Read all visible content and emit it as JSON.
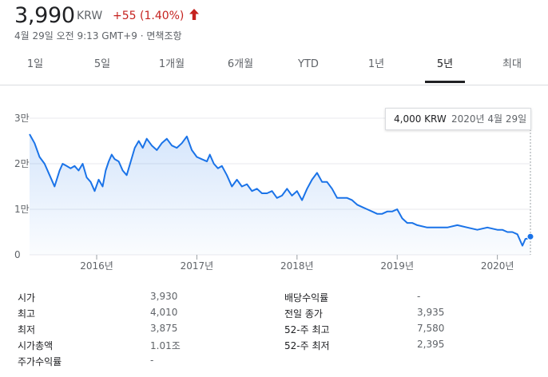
{
  "header": {
    "price": "3,990",
    "currency": "KRW",
    "change": "+55 (1.40%)",
    "change_color": "#c5221f",
    "trend_icon": "up-arrow-icon",
    "meta": "4월 29일 오전 9:13 GMT+9 · 면책조항"
  },
  "tabs": [
    {
      "label": "1일"
    },
    {
      "label": "5일"
    },
    {
      "label": "1개월"
    },
    {
      "label": "6개월"
    },
    {
      "label": "YTD"
    },
    {
      "label": "1년"
    },
    {
      "label": "5년",
      "active": true
    },
    {
      "label": "최대"
    }
  ],
  "tooltip": {
    "value": "4,000 KRW",
    "date": "2020년 4월 29일"
  },
  "chart_data": {
    "type": "area",
    "line_color": "#1a73e8",
    "y_ticks": [
      "3만",
      "2만",
      "1만",
      "0"
    ],
    "y_tick_values": [
      30000,
      20000,
      10000,
      0
    ],
    "ylim": [
      0,
      30000
    ],
    "x_ticks": [
      "2016년",
      "2017년",
      "2018년",
      "2019년",
      "2020년"
    ],
    "x_tick_values": [
      2016.0,
      2017.0,
      2018.0,
      2019.0,
      2020.0
    ],
    "xlim": [
      2015.33,
      2020.33
    ],
    "grid": true,
    "series": [
      {
        "x": [
          2015.33,
          2015.38,
          2015.43,
          2015.48,
          2015.53,
          2015.58,
          2015.63,
          2015.66,
          2015.7,
          2015.74,
          2015.78,
          2015.82,
          2015.86,
          2015.9,
          2015.94,
          2015.98,
          2016.02,
          2016.06,
          2016.09,
          2016.12,
          2016.15,
          2016.18,
          2016.22,
          2016.26,
          2016.3,
          2016.34,
          2016.38,
          2016.42,
          2016.46,
          2016.5,
          2016.55,
          2016.6,
          2016.65,
          2016.7,
          2016.75,
          2016.8,
          2016.85,
          2016.9,
          2016.95,
          2017.0,
          2017.05,
          2017.1,
          2017.13,
          2017.17,
          2017.21,
          2017.25,
          2017.3,
          2017.35,
          2017.4,
          2017.45,
          2017.5,
          2017.55,
          2017.6,
          2017.65,
          2017.7,
          2017.75,
          2017.8,
          2017.85,
          2017.9,
          2017.95,
          2018.0,
          2018.05,
          2018.1,
          2018.15,
          2018.2,
          2018.25,
          2018.3,
          2018.35,
          2018.4,
          2018.45,
          2018.5,
          2018.55,
          2018.6,
          2018.65,
          2018.7,
          2018.75,
          2018.8,
          2018.85,
          2018.9,
          2018.95,
          2019.0,
          2019.05,
          2019.1,
          2019.15,
          2019.2,
          2019.3,
          2019.4,
          2019.5,
          2019.6,
          2019.7,
          2019.8,
          2019.9,
          2020.0,
          2020.05,
          2020.1,
          2020.15,
          2020.2,
          2020.25,
          2020.28,
          2020.31,
          2020.33
        ],
        "y": [
          26500,
          24500,
          21500,
          20000,
          17500,
          15000,
          18500,
          20000,
          19500,
          19000,
          19500,
          18500,
          20000,
          17000,
          16000,
          14000,
          16500,
          15000,
          18500,
          20500,
          22000,
          21000,
          20500,
          18500,
          17500,
          20500,
          23500,
          25000,
          23500,
          25500,
          24000,
          23000,
          24500,
          25500,
          24000,
          23500,
          24500,
          26000,
          23000,
          21500,
          21000,
          20500,
          22000,
          20000,
          19000,
          19500,
          17500,
          15000,
          16500,
          15000,
          15500,
          14000,
          14500,
          13500,
          13500,
          14000,
          12500,
          13000,
          14500,
          13000,
          14000,
          12000,
          14500,
          16500,
          18000,
          16000,
          16000,
          14500,
          12500,
          12500,
          12500,
          12000,
          11000,
          10500,
          10000,
          9500,
          9000,
          9000,
          9500,
          9500,
          10000,
          8000,
          7000,
          7000,
          6500,
          6000,
          6000,
          6000,
          6500,
          6000,
          5500,
          6000,
          5500,
          5500,
          5000,
          5000,
          4500,
          2000,
          3500,
          3600,
          4000
        ]
      }
    ]
  },
  "stats": {
    "left": [
      {
        "label": "시가",
        "value": "3,930"
      },
      {
        "label": "최고",
        "value": "4,010"
      },
      {
        "label": "최저",
        "value": "3,875"
      },
      {
        "label": "시가총액",
        "value": "1.01조"
      },
      {
        "label": "주가수익률",
        "value": "-"
      }
    ],
    "right": [
      {
        "label": "배당수익률",
        "value": "-"
      },
      {
        "label": "전일 종가",
        "value": "3,935"
      },
      {
        "label": "52-주 최고",
        "value": "7,580"
      },
      {
        "label": "52-주 최저",
        "value": "2,395"
      }
    ]
  }
}
